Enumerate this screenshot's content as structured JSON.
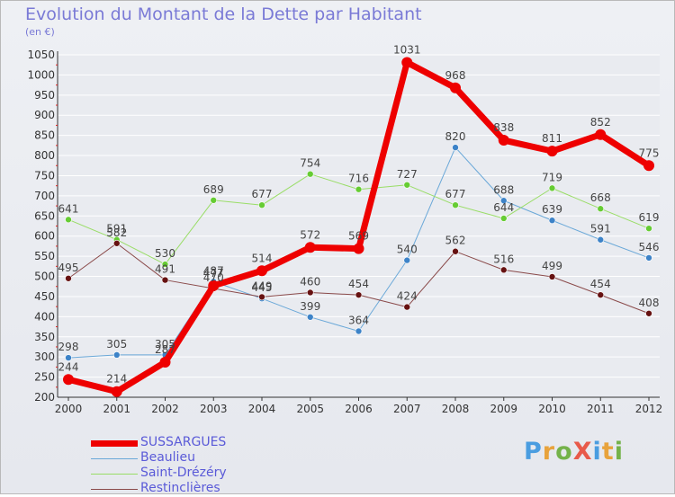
{
  "title": "Evolution du Montant de la Dette par Habitant",
  "subtitle": "(en €)",
  "logo": {
    "text": "ProXiti",
    "colors": [
      "#4a9de0",
      "#e8a33c",
      "#74b24a",
      "#e85a4a",
      "#4a9de0",
      "#e8a33c",
      "#74b24a"
    ]
  },
  "chart_data": {
    "type": "line",
    "title": "Evolution du Montant de la Dette par Habitant",
    "ylabel": "(en €)",
    "xlabel": "",
    "x": [
      "2000",
      "2001",
      "2002",
      "2003",
      "2004",
      "2005",
      "2006",
      "2007",
      "2008",
      "2009",
      "2010",
      "2011",
      "2012"
    ],
    "ylim": [
      200,
      1050
    ],
    "yticks": [
      200,
      250,
      300,
      350,
      400,
      450,
      500,
      550,
      600,
      650,
      700,
      750,
      800,
      850,
      900,
      950,
      1000,
      1050
    ],
    "grid": "horizontal",
    "legend_position": "bottom-left",
    "series": [
      {
        "name": "SUSSARGUES",
        "color": "#ee0000",
        "marker": "#ee0000",
        "width": 7,
        "radius": 6,
        "values": [
          244,
          214,
          287,
          477,
          514,
          572,
          569,
          1031,
          968,
          838,
          811,
          852,
          775
        ],
        "labels": [
          "244",
          "214",
          "287",
          "477",
          "514",
          "572",
          "569",
          "1031",
          "968",
          "838",
          "811",
          "852",
          "775"
        ]
      },
      {
        "name": "Beaulieu",
        "color": "#6aa8d8",
        "marker": "#3d83c8",
        "width": 1,
        "radius": 3.5,
        "values": [
          298,
          305,
          305,
          487,
          445,
          399,
          364,
          540,
          820,
          688,
          639,
          591,
          546
        ],
        "labels": [
          "298",
          "305",
          "305",
          "487",
          "445",
          "399",
          "364",
          "540",
          "820",
          "688",
          "639",
          "591",
          "546"
        ]
      },
      {
        "name": "Saint-Drézéry",
        "color": "#99dd66",
        "marker": "#66cc33",
        "width": 1,
        "radius": 3.5,
        "values": [
          641,
          591,
          530,
          689,
          677,
          754,
          716,
          727,
          677,
          644,
          719,
          668,
          619
        ],
        "labels": [
          "641",
          "591",
          "530",
          "689",
          "677",
          "754",
          "716",
          "727",
          "677",
          "644",
          "719",
          "668",
          "619"
        ]
      },
      {
        "name": "Restinclières",
        "color": "#8a4a4a",
        "marker": "#661111",
        "width": 1,
        "radius": 3.5,
        "values": [
          495,
          582,
          491,
          470,
          449,
          460,
          454,
          424,
          562,
          516,
          499,
          454,
          408
        ],
        "labels": [
          "495",
          "582",
          "491",
          "470",
          "449",
          "460",
          "454",
          "424",
          "562",
          "516",
          "499",
          "454",
          "408"
        ]
      }
    ]
  }
}
